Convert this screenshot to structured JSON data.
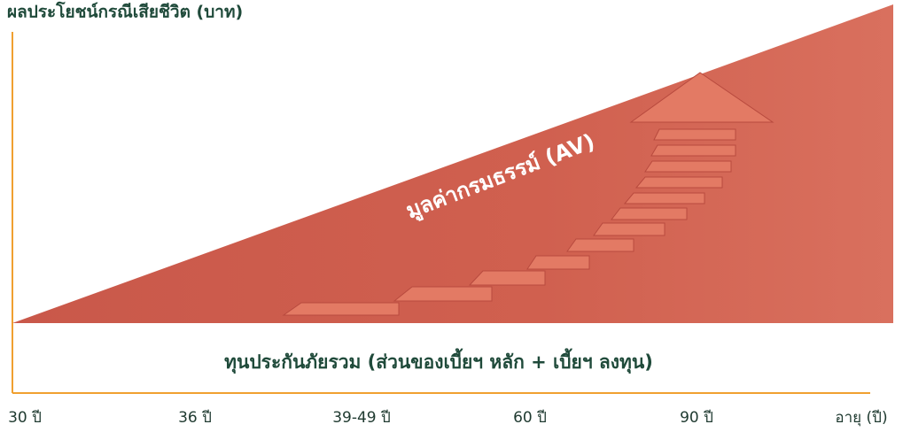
{
  "title": "ผลประโยชน์กรณีเสียชีวิต (บาท)",
  "av_label": "มูลค่ากรมธรรม์ (AV)",
  "band_label": "ทุนประกันภัยรวม (ส่วนของเบี้ยฯ หลัก + เบี้ยฯ ลงทุน)",
  "x_labels": [
    "30 ปี",
    "36 ปี",
    "39-49 ปี",
    "60 ปี",
    "90 ปี",
    "อายุ (ปี)"
  ]
}
